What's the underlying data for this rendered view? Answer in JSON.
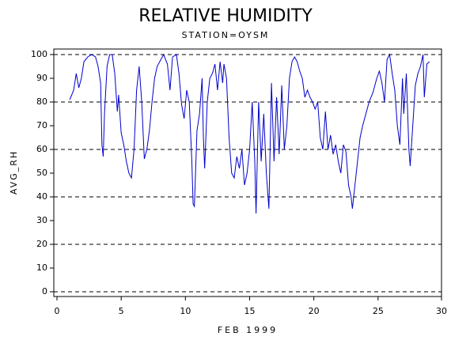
{
  "chart_data": {
    "type": "line",
    "title": "RELATIVE HUMIDITY",
    "subtitle": "STATION=OYSM",
    "x_label": "FEB 1999",
    "y_label": "AVG_RH",
    "xlim": [
      0,
      30
    ],
    "xticks": [
      0,
      5,
      10,
      15,
      20,
      25,
      30
    ],
    "ylim": [
      0,
      100
    ],
    "yticks": [
      0,
      10,
      20,
      30,
      40,
      50,
      60,
      70,
      80,
      90,
      100
    ],
    "ygrid": [
      0,
      20,
      40,
      60,
      80,
      100
    ],
    "grid": true,
    "series": [
      {
        "name": "AVG_RH",
        "color": "#0000cc",
        "x": [
          1.0,
          1.3,
          1.5,
          1.7,
          1.9,
          2.1,
          2.4,
          2.7,
          3.0,
          3.2,
          3.4,
          3.5,
          3.6,
          3.7,
          3.9,
          4.1,
          4.3,
          4.5,
          4.7,
          4.8,
          5.0,
          5.2,
          5.4,
          5.6,
          5.8,
          6.0,
          6.2,
          6.4,
          6.6,
          6.8,
          7.0,
          7.2,
          7.4,
          7.6,
          7.8,
          8.0,
          8.3,
          8.6,
          8.8,
          9.0,
          9.3,
          9.5,
          9.7,
          9.9,
          10.1,
          10.3,
          10.5,
          10.6,
          10.7,
          10.9,
          11.1,
          11.3,
          11.4,
          11.5,
          11.7,
          11.9,
          12.1,
          12.3,
          12.5,
          12.7,
          12.9,
          13.0,
          13.2,
          13.4,
          13.6,
          13.8,
          14.0,
          14.2,
          14.4,
          14.6,
          14.8,
          15.0,
          15.2,
          15.4,
          15.5,
          15.7,
          15.9,
          16.1,
          16.3,
          16.5,
          16.7,
          16.9,
          17.1,
          17.3,
          17.5,
          17.7,
          17.9,
          18.1,
          18.3,
          18.5,
          18.7,
          18.9,
          19.1,
          19.3,
          19.5,
          19.7,
          19.9,
          20.1,
          20.3,
          20.5,
          20.7,
          20.9,
          21.1,
          21.3,
          21.5,
          21.7,
          21.9,
          22.1,
          22.3,
          22.5,
          22.7,
          22.9,
          23.0,
          23.2,
          23.4,
          23.6,
          23.8,
          24.0,
          24.3,
          24.6,
          24.9,
          25.1,
          25.3,
          25.5,
          25.7,
          25.9,
          26.1,
          26.3,
          26.5,
          26.7,
          26.9,
          27.0,
          27.2,
          27.4,
          27.5,
          27.7,
          27.9,
          28.1,
          28.3,
          28.5,
          28.6,
          28.8,
          29.0
        ],
        "values": [
          81,
          85,
          92,
          86,
          90,
          97,
          99,
          100,
          99,
          95,
          88,
          62,
          57,
          75,
          95,
          100,
          100,
          92,
          76,
          83,
          67,
          62,
          55,
          50,
          48,
          60,
          85,
          95,
          80,
          56,
          60,
          68,
          80,
          90,
          95,
          97,
          100,
          96,
          85,
          99,
          100,
          92,
          79,
          73,
          85,
          80,
          55,
          37,
          36,
          68,
          75,
          90,
          65,
          52,
          80,
          90,
          92,
          96,
          85,
          97,
          88,
          96,
          90,
          65,
          50,
          48,
          57,
          52,
          60,
          45,
          50,
          60,
          80,
          55,
          33,
          80,
          55,
          75,
          50,
          35,
          88,
          55,
          82,
          58,
          87,
          60,
          70,
          90,
          97,
          99,
          97,
          93,
          90,
          82,
          85,
          82,
          80,
          77,
          80,
          65,
          60,
          76,
          60,
          66,
          58,
          62,
          55,
          50,
          62,
          59,
          45,
          40,
          35,
          45,
          55,
          65,
          70,
          74,
          80,
          84,
          90,
          93,
          88,
          80,
          98,
          100,
          92,
          85,
          70,
          62,
          90,
          75,
          92,
          60,
          53,
          70,
          87,
          92,
          95,
          100,
          82,
          96,
          97
        ]
      }
    ]
  }
}
